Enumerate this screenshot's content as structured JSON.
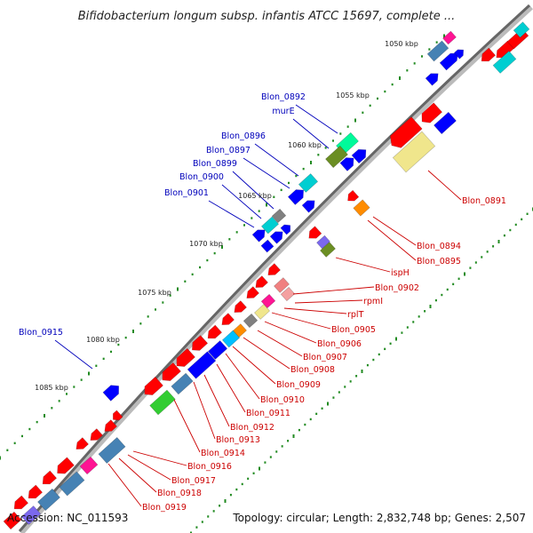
{
  "title": "Bifidobacterium longum subsp. infantis ATCC 15697, complete ...",
  "footer": {
    "accession": "Accession: NC_011593",
    "summary": "Topology: circular; Length: 2,832,748 bp; Genes: 2,507"
  },
  "colors": {
    "forward_label": "#0000bb",
    "reverse_label": "#cc0000",
    "backbone": "#666666",
    "gc_dots": "#228b22"
  },
  "kbp_ticks": [
    "1050 kbp",
    "1055 kbp",
    "1060 kbp",
    "1065 kbp",
    "1070 kbp",
    "1075 kbp",
    "1080 kbp",
    "1085 kbp"
  ],
  "forward_labels": [
    "Blon_0892",
    "murE",
    "Blon_0896",
    "Blon_0897",
    "Blon_0899",
    "Blon_0900",
    "Blon_0901",
    "Blon_0915"
  ],
  "reverse_labels": [
    "Blon_0891",
    "Blon_0894",
    "Blon_0895",
    "ispH",
    "Blon_0902",
    "rpmI",
    "rplT",
    "Blon_0905",
    "Blon_0906",
    "Blon_0907",
    "Blon_0908",
    "Blon_0909",
    "Blon_0910",
    "Blon_0911",
    "Blon_0912",
    "Blon_0913",
    "Blon_0914",
    "Blon_0916",
    "Blon_0917",
    "Blon_0918",
    "Blon_0919"
  ]
}
